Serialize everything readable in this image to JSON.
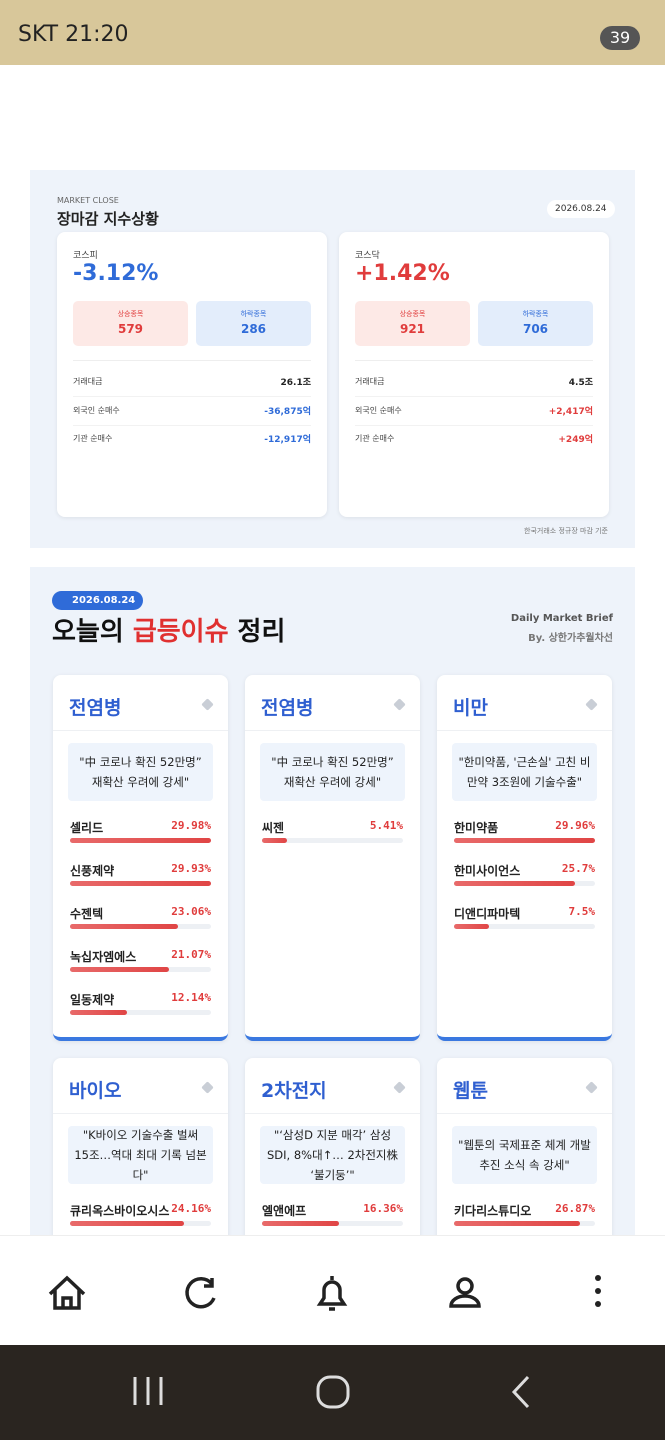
{
  "status_bar": {
    "time": "SKT 21:20",
    "battery": "39"
  },
  "market": {
    "label": "MARKET CLOSE",
    "title": "장마감 지수상황",
    "date": "2026.08.24",
    "cards": [
      {
        "name": "코스피",
        "change": "-3.12%",
        "up_label": "상승종목",
        "up": "579",
        "down_label": "하락종목",
        "down": "286",
        "rows": [
          [
            "거래대금",
            "26.1조"
          ],
          [
            "외국인 순매수",
            "-36,875억"
          ],
          [
            "기관 순매수",
            "-12,917억"
          ]
        ]
      },
      {
        "name": "코스닥",
        "change": "+1.42%",
        "up_label": "상승종목",
        "up": "921",
        "down_label": "하락종목",
        "down": "706",
        "rows": [
          [
            "거래대금",
            "4.5조"
          ],
          [
            "외국인 순매수",
            "+2,417억"
          ],
          [
            "기관 순매수",
            "+249억"
          ]
        ]
      }
    ],
    "footnote": "한국거래소 정규장 마감 기준"
  },
  "issues": {
    "date": "2026.08.24",
    "title_parts": [
      "오늘의 ",
      "급등이슈",
      " 정리"
    ],
    "brief": "Daily Market Brief",
    "by": "By. 상한가추월차선",
    "themes": [
      {
        "name": "전염병",
        "headline": "\"中 코로나 확진 52만명” 재확산 우려에 강세\"",
        "stocks": [
          {
            "name": "셀리드",
            "value": 29.98,
            "label": "29.98%"
          },
          {
            "name": "신풍제약",
            "value": 29.93,
            "label": "29.93%"
          },
          {
            "name": "수젠텍",
            "value": 23.06,
            "label": "23.06%"
          },
          {
            "name": "녹십자엠에스",
            "value": 21.07,
            "label": "21.07%"
          },
          {
            "name": "일동제약",
            "value": 12.14,
            "label": "12.14%"
          }
        ]
      },
      {
        "name": "전염병",
        "headline": "\"中 코로나 확진 52만명” 재확산 우려에 강세\"",
        "stocks": [
          {
            "name": "씨젠",
            "value": 5.41,
            "label": "5.41%"
          }
        ]
      },
      {
        "name": "비만",
        "headline": "\"한미약품, '근손실' 고친 비만약 3조원에 기술수출\"",
        "stocks": [
          {
            "name": "한미약품",
            "value": 29.96,
            "label": "29.96%"
          },
          {
            "name": "한미사이언스",
            "value": 25.7,
            "label": "25.7%"
          },
          {
            "name": "디앤디파마텍",
            "value": 7.5,
            "label": "7.5%"
          }
        ]
      },
      {
        "name": "바이오",
        "headline": "\"K바이오 기술수출 벌써 15조…역대 최대 기록 넘본다\"",
        "stocks": [
          {
            "name": "큐리옥스바이오시스",
            "value": 24.16,
            "label": "24.16%"
          }
        ]
      },
      {
        "name": "2차전지",
        "headline": "\"‘삼성D 지분 매각’ 삼성SDI, 8%대↑… 2차전지株 ‘불기둥’\"",
        "stocks": [
          {
            "name": "엘앤에프",
            "value": 16.36,
            "label": "16.36%"
          }
        ]
      },
      {
        "name": "웹툰",
        "headline": "\"웹툰의 국제표준 체계 개발 추진 소식 속 강세\"",
        "stocks": [
          {
            "name": "키다리스튜디오",
            "value": 26.87,
            "label": "26.87%"
          }
        ]
      }
    ]
  }
}
